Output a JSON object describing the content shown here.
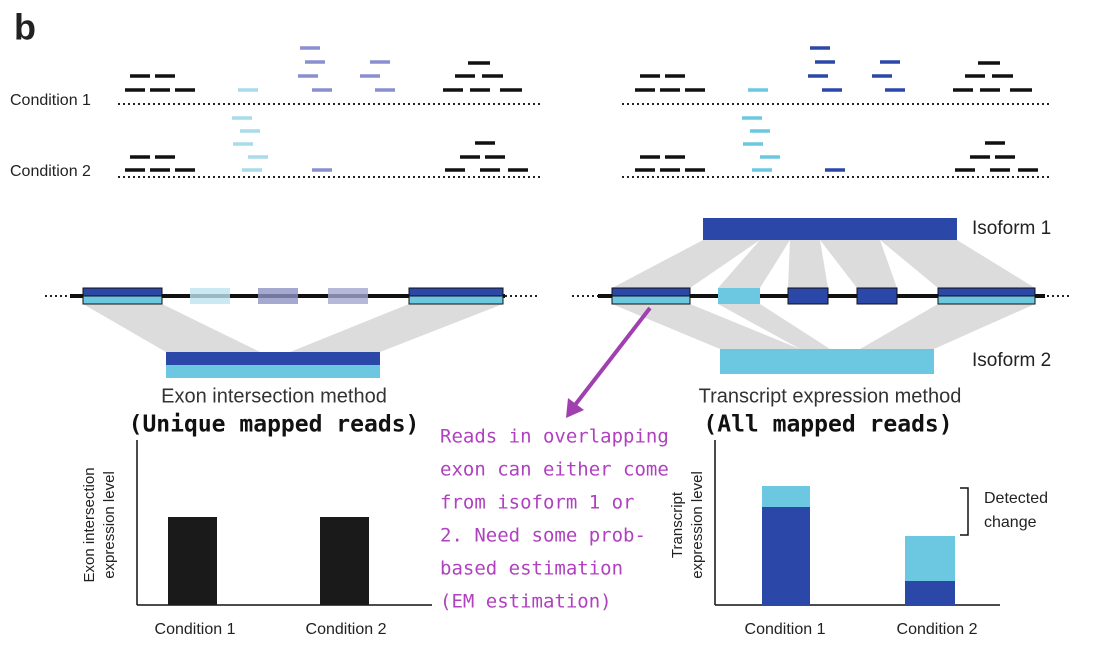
{
  "panel_label": "b",
  "left": {
    "conditions": [
      "Condition 1",
      "Condition 2"
    ],
    "method": "Exon intersection method",
    "reads": "(Unique mapped reads)",
    "chart": {
      "y_label": [
        "Exon intersection",
        "expression level"
      ],
      "categories": [
        "Condition 1",
        "Condition 2"
      ]
    }
  },
  "right": {
    "isoforms": [
      "Isoform 1",
      "Isoform 2"
    ],
    "method": "Transcript expression method",
    "reads": "(All mapped reads)",
    "chart": {
      "y_label": [
        "Transcript",
        "expression level"
      ],
      "categories": [
        "Condition 1",
        "Condition 2"
      ],
      "annotation": [
        "Detected",
        "change"
      ]
    }
  },
  "callout": {
    "lines": [
      "Reads in overlapping",
      "exon can either come",
      "from isoform 1 or",
      "2. Need some prob-",
      "based estimation",
      "(EM estimation)"
    ]
  }
}
